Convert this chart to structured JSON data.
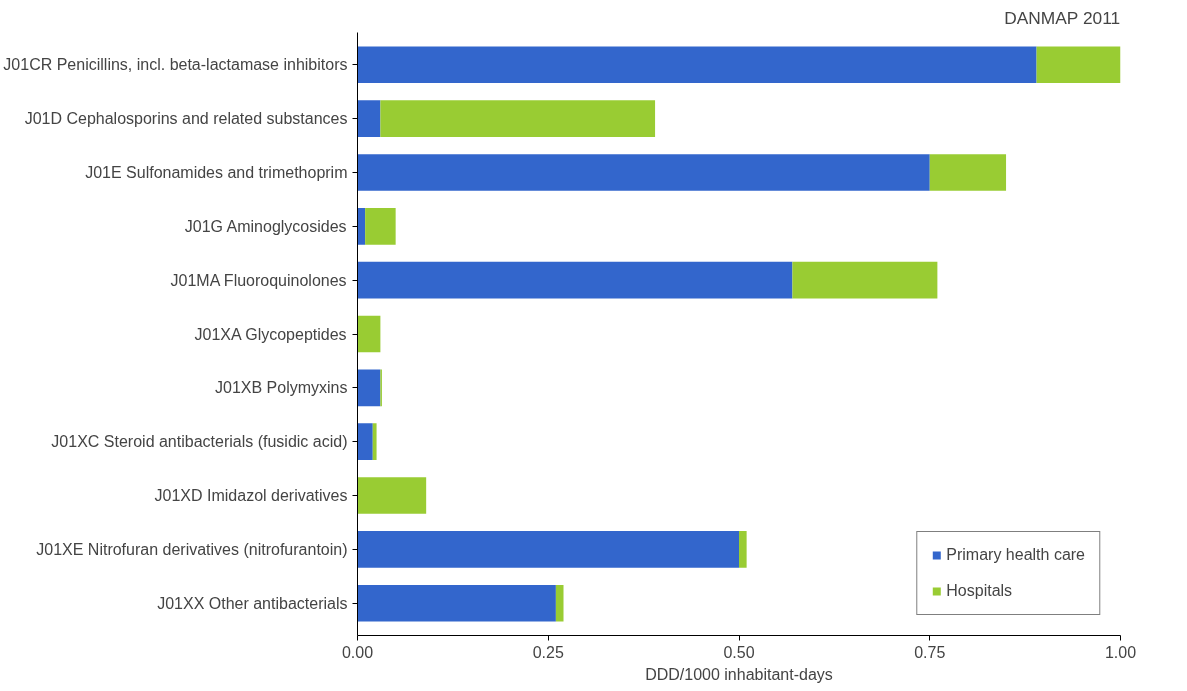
{
  "chart_data": {
    "type": "bar",
    "orientation": "horizontal",
    "stacked": true,
    "categories": [
      "J01CR Penicillins, incl. beta-lactamase inhibitors",
      "J01D Cephalosporins and related substances",
      "J01E Sulfonamides and trimethoprim",
      "J01G Aminoglycosides",
      "J01MA Fluoroquinolones",
      "J01XA Glycopeptides",
      "J01XB Polymyxins",
      "J01XC Steroid antibacterials (fusidic acid)",
      "J01XD Imidazol derivatives",
      "J01XE Nitrofuran derivatives (nitrofurantoin)",
      "J01XX Other antibacterials"
    ],
    "series": [
      {
        "name": "Primary health care",
        "color": "#3366cc",
        "values": [
          0.89,
          0.03,
          0.75,
          0.01,
          0.57,
          0,
          0.03,
          0.02,
          0,
          0.5,
          0.26
        ]
      },
      {
        "name": "Hospitals",
        "color": "#99cc33",
        "values": [
          0.11,
          0.36,
          0.1,
          0.04,
          0.19,
          0.03,
          0.002,
          0.005,
          0.09,
          0.01,
          0.01
        ]
      }
    ],
    "xlim": [
      0,
      1
    ],
    "xticks": [
      {
        "value": 0,
        "label": "0.00"
      },
      {
        "value": 0.25,
        "label": "0.25"
      },
      {
        "value": 0.5,
        "label": "0.50"
      },
      {
        "value": 0.75,
        "label": "0.75"
      },
      {
        "value": 1,
        "label": "1.00"
      }
    ],
    "xlabel": "DDD/1000 inhabitant-days",
    "annotations": [
      "DANMAP 2011"
    ],
    "legend": "bottom right",
    "grid": false
  }
}
